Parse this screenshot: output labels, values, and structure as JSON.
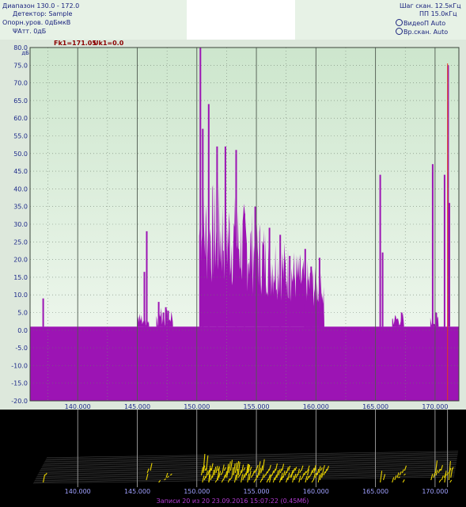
{
  "header": {
    "range_label": "Диапазон",
    "range_value": "130.0 - 172.0",
    "detector_label": "Детектор:",
    "detector_value": "Sample",
    "ref_label": "Опорн.уров.",
    "ref_value": "0дБмкВ",
    "att_label": "Атт.",
    "att_value": "0дБ",
    "step_label": "Шаг скан.",
    "step_value": "12.5кГц",
    "bw_label": "ПП",
    "bw_value": "15.0кГц",
    "videobw_label": "ВидеоП",
    "videobw_value": "Auto",
    "scantime_label": "Вр.скан.",
    "scantime_value": "Auto"
  },
  "cursor": {
    "freq_label": "Fk1=171.05",
    "level_label": "Uk1=0.0"
  },
  "colors": {
    "spectrum": "#9c14b4",
    "plot_bg_top": "#cde6cd",
    "plot_bg_bottom": "#f4faf3",
    "header_bg": "#e7f2e6",
    "header_text": "#1a237e",
    "cursor_line": "#e03a1e",
    "waterfall_trace": "#e8d200"
  },
  "icons": {
    "att": "antenna-icon",
    "videobw": "a-circle-icon",
    "scantime": "a-circle-icon"
  },
  "chart_data": {
    "type": "area",
    "ylabel": "дБ",
    "xlim": [
      136.0,
      172.0
    ],
    "ylim": [
      -20.0,
      80.0
    ],
    "yticks": [
      80.0,
      75.0,
      70.0,
      65.0,
      60.0,
      55.0,
      50.0,
      45.0,
      40.0,
      35.0,
      30.0,
      25.0,
      20.0,
      15.0,
      10.0,
      5.0,
      0.0,
      -5.0,
      -10.0,
      -15.0,
      -20.0
    ],
    "xticks": [
      140.0,
      145.0,
      150.0,
      155.0,
      160.0,
      165.0,
      170.0
    ],
    "xtick_labels": [
      "140.000",
      "145.000",
      "150.000",
      "155.000",
      "160.000",
      "165.000",
      "170.000"
    ],
    "grid": true,
    "baseline": 1.0,
    "cursor_x": 171.05,
    "peaks": [
      {
        "x": 137.1,
        "y": 9.0
      },
      {
        "x": 145.6,
        "y": 16.5
      },
      {
        "x": 145.8,
        "y": 28.0
      },
      {
        "x": 146.8,
        "y": 8.0
      },
      {
        "x": 147.2,
        "y": 5.0
      },
      {
        "x": 147.4,
        "y": 6.5
      },
      {
        "x": 147.6,
        "y": 5.5
      },
      {
        "x": 150.3,
        "y": 80.0
      },
      {
        "x": 150.5,
        "y": 57.0
      },
      {
        "x": 151.0,
        "y": 64.0
      },
      {
        "x": 151.7,
        "y": 52.0
      },
      {
        "x": 152.4,
        "y": 52.0
      },
      {
        "x": 153.3,
        "y": 51.0
      },
      {
        "x": 154.0,
        "y": 33.0
      },
      {
        "x": 154.9,
        "y": 35.0
      },
      {
        "x": 156.1,
        "y": 29.0
      },
      {
        "x": 157.0,
        "y": 27.0
      },
      {
        "x": 157.8,
        "y": 21.0
      },
      {
        "x": 159.1,
        "y": 23.0
      },
      {
        "x": 159.6,
        "y": 18.0
      },
      {
        "x": 160.3,
        "y": 20.5
      },
      {
        "x": 165.4,
        "y": 44.0
      },
      {
        "x": 165.6,
        "y": 22.0
      },
      {
        "x": 166.8,
        "y": 3.0
      },
      {
        "x": 167.2,
        "y": 5.0
      },
      {
        "x": 169.8,
        "y": 47.0
      },
      {
        "x": 170.1,
        "y": 5.0
      },
      {
        "x": 170.8,
        "y": 44.0
      },
      {
        "x": 171.1,
        "y": 75.0
      },
      {
        "x": 171.2,
        "y": 36.0
      }
    ]
  },
  "waterfall": {
    "xtick_labels": [
      "140.000",
      "145.000",
      "150.000",
      "155.000",
      "160.000",
      "165.000",
      "170.000"
    ],
    "status": "Записи 20 из 20 23.09.2016 15:07:22 (0.45Мб)"
  }
}
